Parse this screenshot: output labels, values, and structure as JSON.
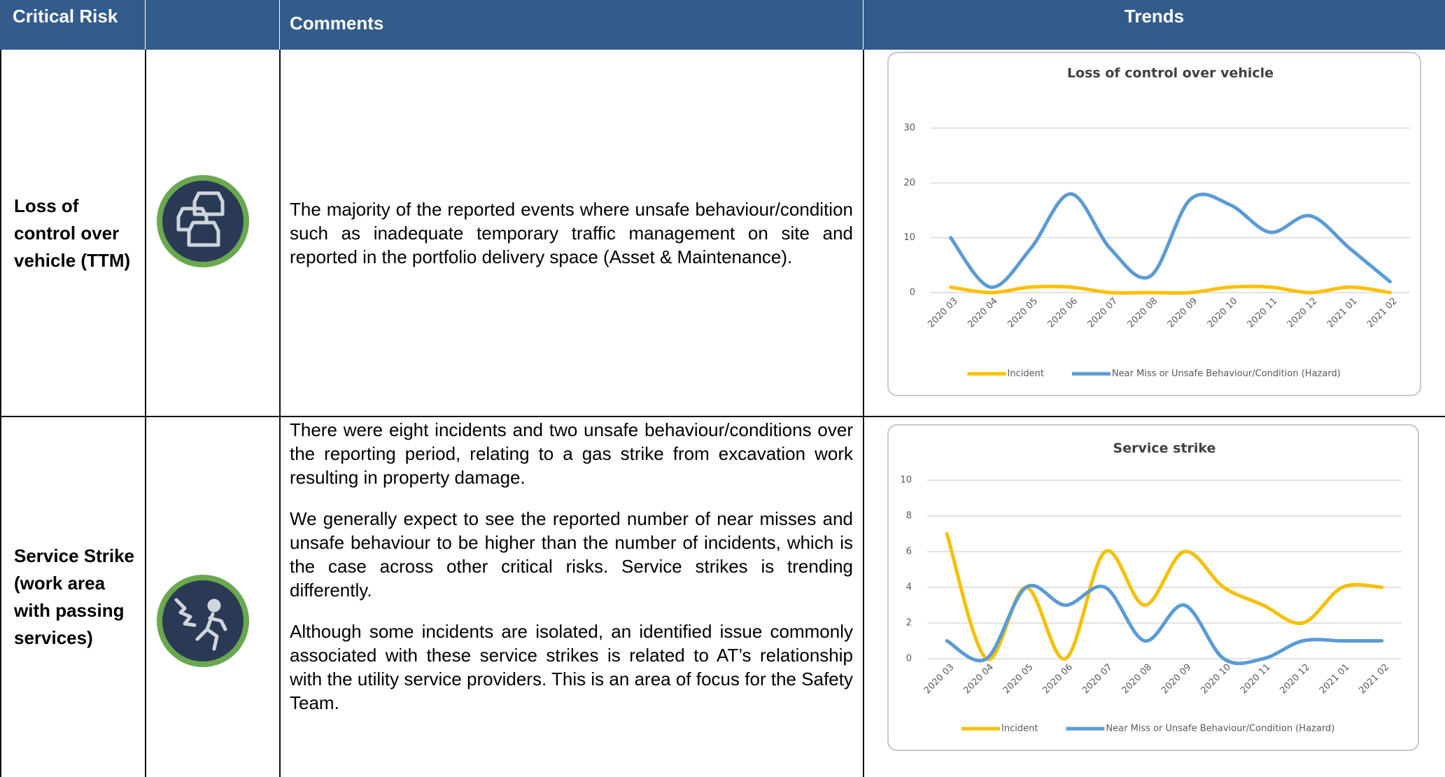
{
  "header": [
    "Critical Risk",
    "Comments",
    "Trends"
  ],
  "rows": [
    {
      "risk": "Loss of control over vehicle (TTM)",
      "comments": [
        "The majority of the reported events where unsafe behaviour/condition such as inadequate temporary traffic management on site and reported in the portfolio delivery space (Asset & Maintenance)."
      ],
      "chart": {
        "type": "line",
        "title": "Loss of control over vehicle",
        "categories": [
          "2020 03",
          "2020 04",
          "2020 05",
          "2020 06",
          "2020 07",
          "2020 08",
          "2020 09",
          "2020 10",
          "2020 11",
          "2020 12",
          "2021 01",
          "2021 02"
        ],
        "series": [
          {
            "name": "Incident",
            "color": "#ffc000",
            "values": [
              1,
              0,
              1,
              1,
              0,
              0,
              0,
              1,
              1,
              0,
              1,
              0
            ]
          },
          {
            "name": "Near Miss or Unsafe Behaviour/Condition (Hazard)",
            "color": "#5b9bd5",
            "values": [
              10,
              1,
              8,
              18,
              8,
              3,
              17,
              16,
              11,
              14,
              8,
              2
            ]
          }
        ],
        "ylim": [
          0,
          30
        ],
        "yticks": [
          0,
          10,
          20,
          30
        ],
        "grid": true,
        "legend": "bottom"
      }
    },
    {
      "risk": "Service Strike (work area with passing services)",
      "comments": [
        "There were eight incidents and two unsafe behaviour/conditions over the reporting period, relating to a gas strike from excavation work resulting in property damage.",
        "We generally expect to see the reported number of near misses and unsafe behaviour to be higher than the number of incidents, which is the case across other critical risks. Service strikes is trending differently.",
        "Although some incidents are isolated, an identified issue commonly associated with these service strikes is related to AT’s relationship with the utility service providers. This is an area of focus for the Safety Team."
      ],
      "chart": {
        "type": "line",
        "title": "Service strike",
        "categories": [
          "2020 03",
          "2020 04",
          "2020 05",
          "2020 06",
          "2020 07",
          "2020 08",
          "2020 09",
          "2020 10",
          "2020 11",
          "2020 12",
          "2021 01",
          "2021 02"
        ],
        "series": [
          {
            "name": "Incident",
            "color": "#f5c000",
            "values": [
              7,
              0,
              4,
              0,
              6,
              3,
              6,
              4,
              3,
              2,
              4,
              4
            ]
          },
          {
            "name": "Near Miss or Unsafe Behaviour/Condition (Hazard)",
            "color": "#5b9bd5",
            "values": [
              1,
              0,
              4,
              3,
              4,
              1,
              3,
              0,
              0,
              1,
              1,
              1
            ]
          }
        ],
        "ylim": [
          0,
          10
        ],
        "yticks": [
          0,
          2,
          4,
          6,
          8,
          10
        ],
        "grid": true,
        "legend": "bottom"
      }
    }
  ]
}
